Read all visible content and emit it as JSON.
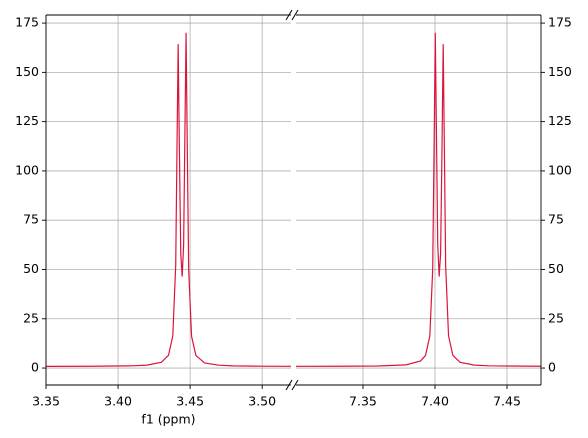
{
  "chart_data": [
    {
      "type": "line",
      "xlabel": "f1 (ppm)",
      "yaxis_side": "left",
      "grid": true,
      "color": "#dc143c",
      "xlim": [
        3.35,
        3.52
      ],
      "ylim": [
        -8.6,
        179.1
      ],
      "xticks": [
        3.35,
        {
          "value": 3.4,
          "label": "3.40"
        },
        3.45,
        {
          "value": 3.5,
          "label": "3.50"
        }
      ],
      "yticks": [
        0,
        25,
        50,
        75,
        100,
        125,
        150,
        175
      ],
      "x": [
        3.35,
        3.38,
        3.41,
        3.42,
        3.43,
        3.435,
        3.438,
        3.44,
        3.441,
        3.4417,
        3.4425,
        3.4435,
        3.4445,
        3.4455,
        3.4465,
        3.4472,
        3.448,
        3.449,
        3.451,
        3.454,
        3.46,
        3.47,
        3.48,
        3.5,
        3.52
      ],
      "values": [
        0.85,
        0.9,
        1.14,
        1.49,
        2.92,
        6.43,
        16.4,
        52.2,
        118.8,
        164.3,
        113.5,
        58.3,
        46.4,
        62.7,
        126.1,
        170.1,
        113.5,
        49.9,
        16.1,
        6.4,
        2.6,
        1.44,
        1.12,
        0.93,
        0.87
      ]
    },
    {
      "type": "line",
      "yaxis_side": "right",
      "grid": true,
      "color": "#dc143c",
      "xlim": [
        7.3035,
        7.4736
      ],
      "ylim": [
        -8.6,
        179.1
      ],
      "xticks": [
        7.35,
        {
          "value": 7.4,
          "label": "7.40"
        },
        7.45
      ],
      "yticks": [
        0,
        25,
        50,
        75,
        100,
        125,
        150,
        175
      ],
      "x": [
        7.3035,
        7.33,
        7.36,
        7.38,
        7.39,
        7.3934,
        7.3964,
        7.3984,
        7.3994,
        7.4002,
        7.4009,
        7.4019,
        7.4029,
        7.4039,
        7.4049,
        7.4057,
        7.4064,
        7.4074,
        7.4094,
        7.4124,
        7.4174,
        7.4274,
        7.4374,
        7.4736
      ],
      "values": [
        0.88,
        0.9,
        1.05,
        1.6,
        3.6,
        6.4,
        16.1,
        49.9,
        113.5,
        170.1,
        126.1,
        62.7,
        46.4,
        58.3,
        113.5,
        164.3,
        118.8,
        52.2,
        16.4,
        6.43,
        2.92,
        1.49,
        1.14,
        0.9
      ]
    }
  ]
}
